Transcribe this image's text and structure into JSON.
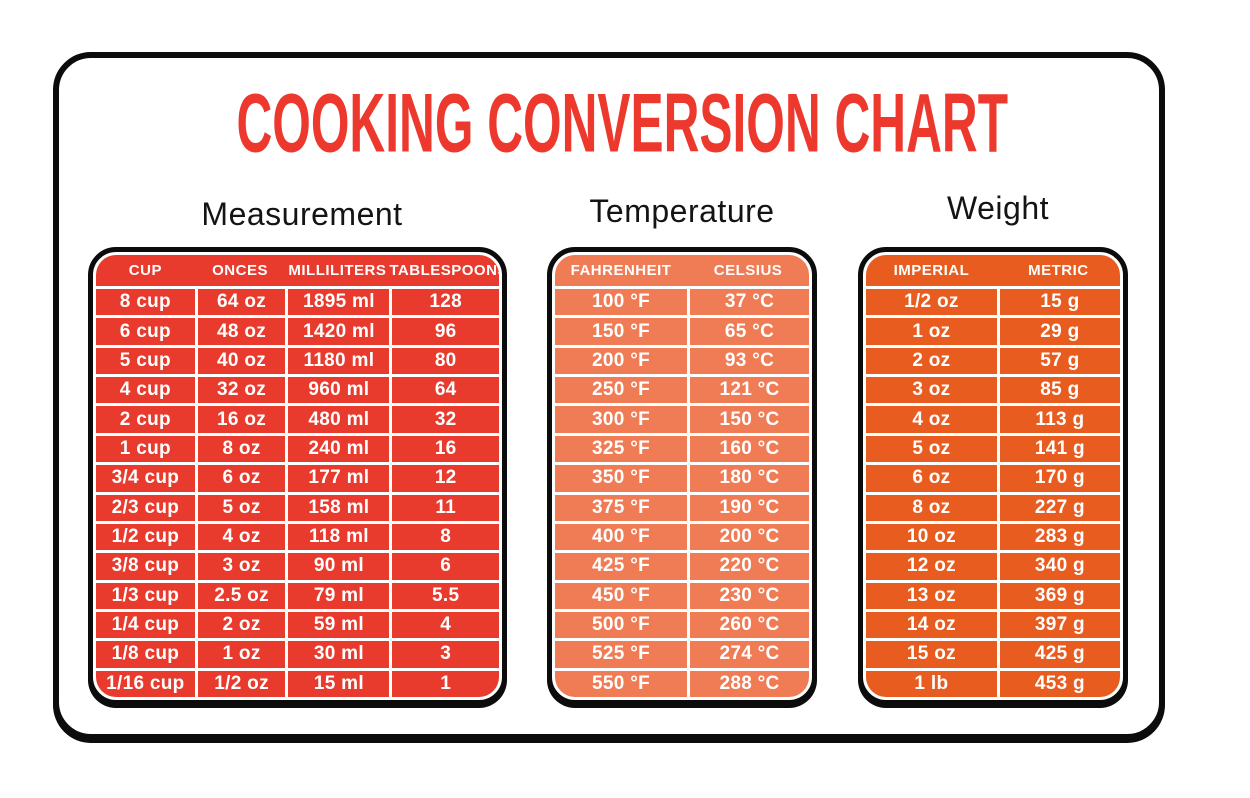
{
  "title": "COOKING CONVERSION CHART",
  "colors": {
    "title_red": "#ED392D",
    "measurement_fill": "#E83A2D",
    "temperature_fill": "#F07C55",
    "weight_fill": "#E85C20",
    "table_border_black": "#0C0C0C",
    "grid_line_white": "#FFFFFF",
    "heading_black": "#141414",
    "table_text_white": "#FFFFFF"
  },
  "chart_data": [
    {
      "type": "table",
      "title": "Measurement",
      "columns": [
        "CUP",
        "ONCES",
        "MILLILITERS",
        "TABLESPOONS"
      ],
      "rows": [
        [
          "8 cup",
          "64 oz",
          "1895 ml",
          "128"
        ],
        [
          "6 cup",
          "48 oz",
          "1420 ml",
          "96"
        ],
        [
          "5 cup",
          "40 oz",
          "1180 ml",
          "80"
        ],
        [
          "4 cup",
          "32 oz",
          "960 ml",
          "64"
        ],
        [
          "2 cup",
          "16 oz",
          "480 ml",
          "32"
        ],
        [
          "1 cup",
          "8 oz",
          "240 ml",
          "16"
        ],
        [
          "3/4 cup",
          "6 oz",
          "177 ml",
          "12"
        ],
        [
          "2/3 cup",
          "5 oz",
          "158 ml",
          "11"
        ],
        [
          "1/2 cup",
          "4 oz",
          "118 ml",
          "8"
        ],
        [
          "3/8 cup",
          "3 oz",
          "90 ml",
          "6"
        ],
        [
          "1/3 cup",
          "2.5 oz",
          "79 ml",
          "5.5"
        ],
        [
          "1/4 cup",
          "2 oz",
          "59 ml",
          "4"
        ],
        [
          "1/8 cup",
          "1 oz",
          "30 ml",
          "3"
        ],
        [
          "1/16 cup",
          "1/2 oz",
          "15 ml",
          "1"
        ]
      ],
      "fill_color": "#E83A2D"
    },
    {
      "type": "table",
      "title": "Temperature",
      "columns": [
        "FAHRENHEIT",
        "CELSIUS"
      ],
      "rows": [
        [
          "100 °F",
          "37 °C"
        ],
        [
          "150 °F",
          "65 °C"
        ],
        [
          "200 °F",
          "93 °C"
        ],
        [
          "250 °F",
          "121 °C"
        ],
        [
          "300 °F",
          "150 °C"
        ],
        [
          "325 °F",
          "160 °C"
        ],
        [
          "350 °F",
          "180 °C"
        ],
        [
          "375 °F",
          "190 °C"
        ],
        [
          "400 °F",
          "200 °C"
        ],
        [
          "425 °F",
          "220 °C"
        ],
        [
          "450 °F",
          "230 °C"
        ],
        [
          "500 °F",
          "260 °C"
        ],
        [
          "525 °F",
          "274 °C"
        ],
        [
          "550 °F",
          "288 °C"
        ]
      ],
      "fill_color": "#F07C55"
    },
    {
      "type": "table",
      "title": "Weight",
      "columns": [
        "IMPERIAL",
        "METRIC"
      ],
      "rows": [
        [
          "1/2 oz",
          "15 g"
        ],
        [
          "1 oz",
          "29 g"
        ],
        [
          "2 oz",
          "57 g"
        ],
        [
          "3 oz",
          "85 g"
        ],
        [
          "4 oz",
          "113 g"
        ],
        [
          "5 oz",
          "141 g"
        ],
        [
          "6 oz",
          "170 g"
        ],
        [
          "8 oz",
          "227 g"
        ],
        [
          "10 oz",
          "283 g"
        ],
        [
          "12 oz",
          "340 g"
        ],
        [
          "13 oz",
          "369 g"
        ],
        [
          "14 oz",
          "397 g"
        ],
        [
          "15 oz",
          "425 g"
        ],
        [
          "1 lb",
          "453 g"
        ]
      ],
      "fill_color": "#E85C20"
    }
  ]
}
